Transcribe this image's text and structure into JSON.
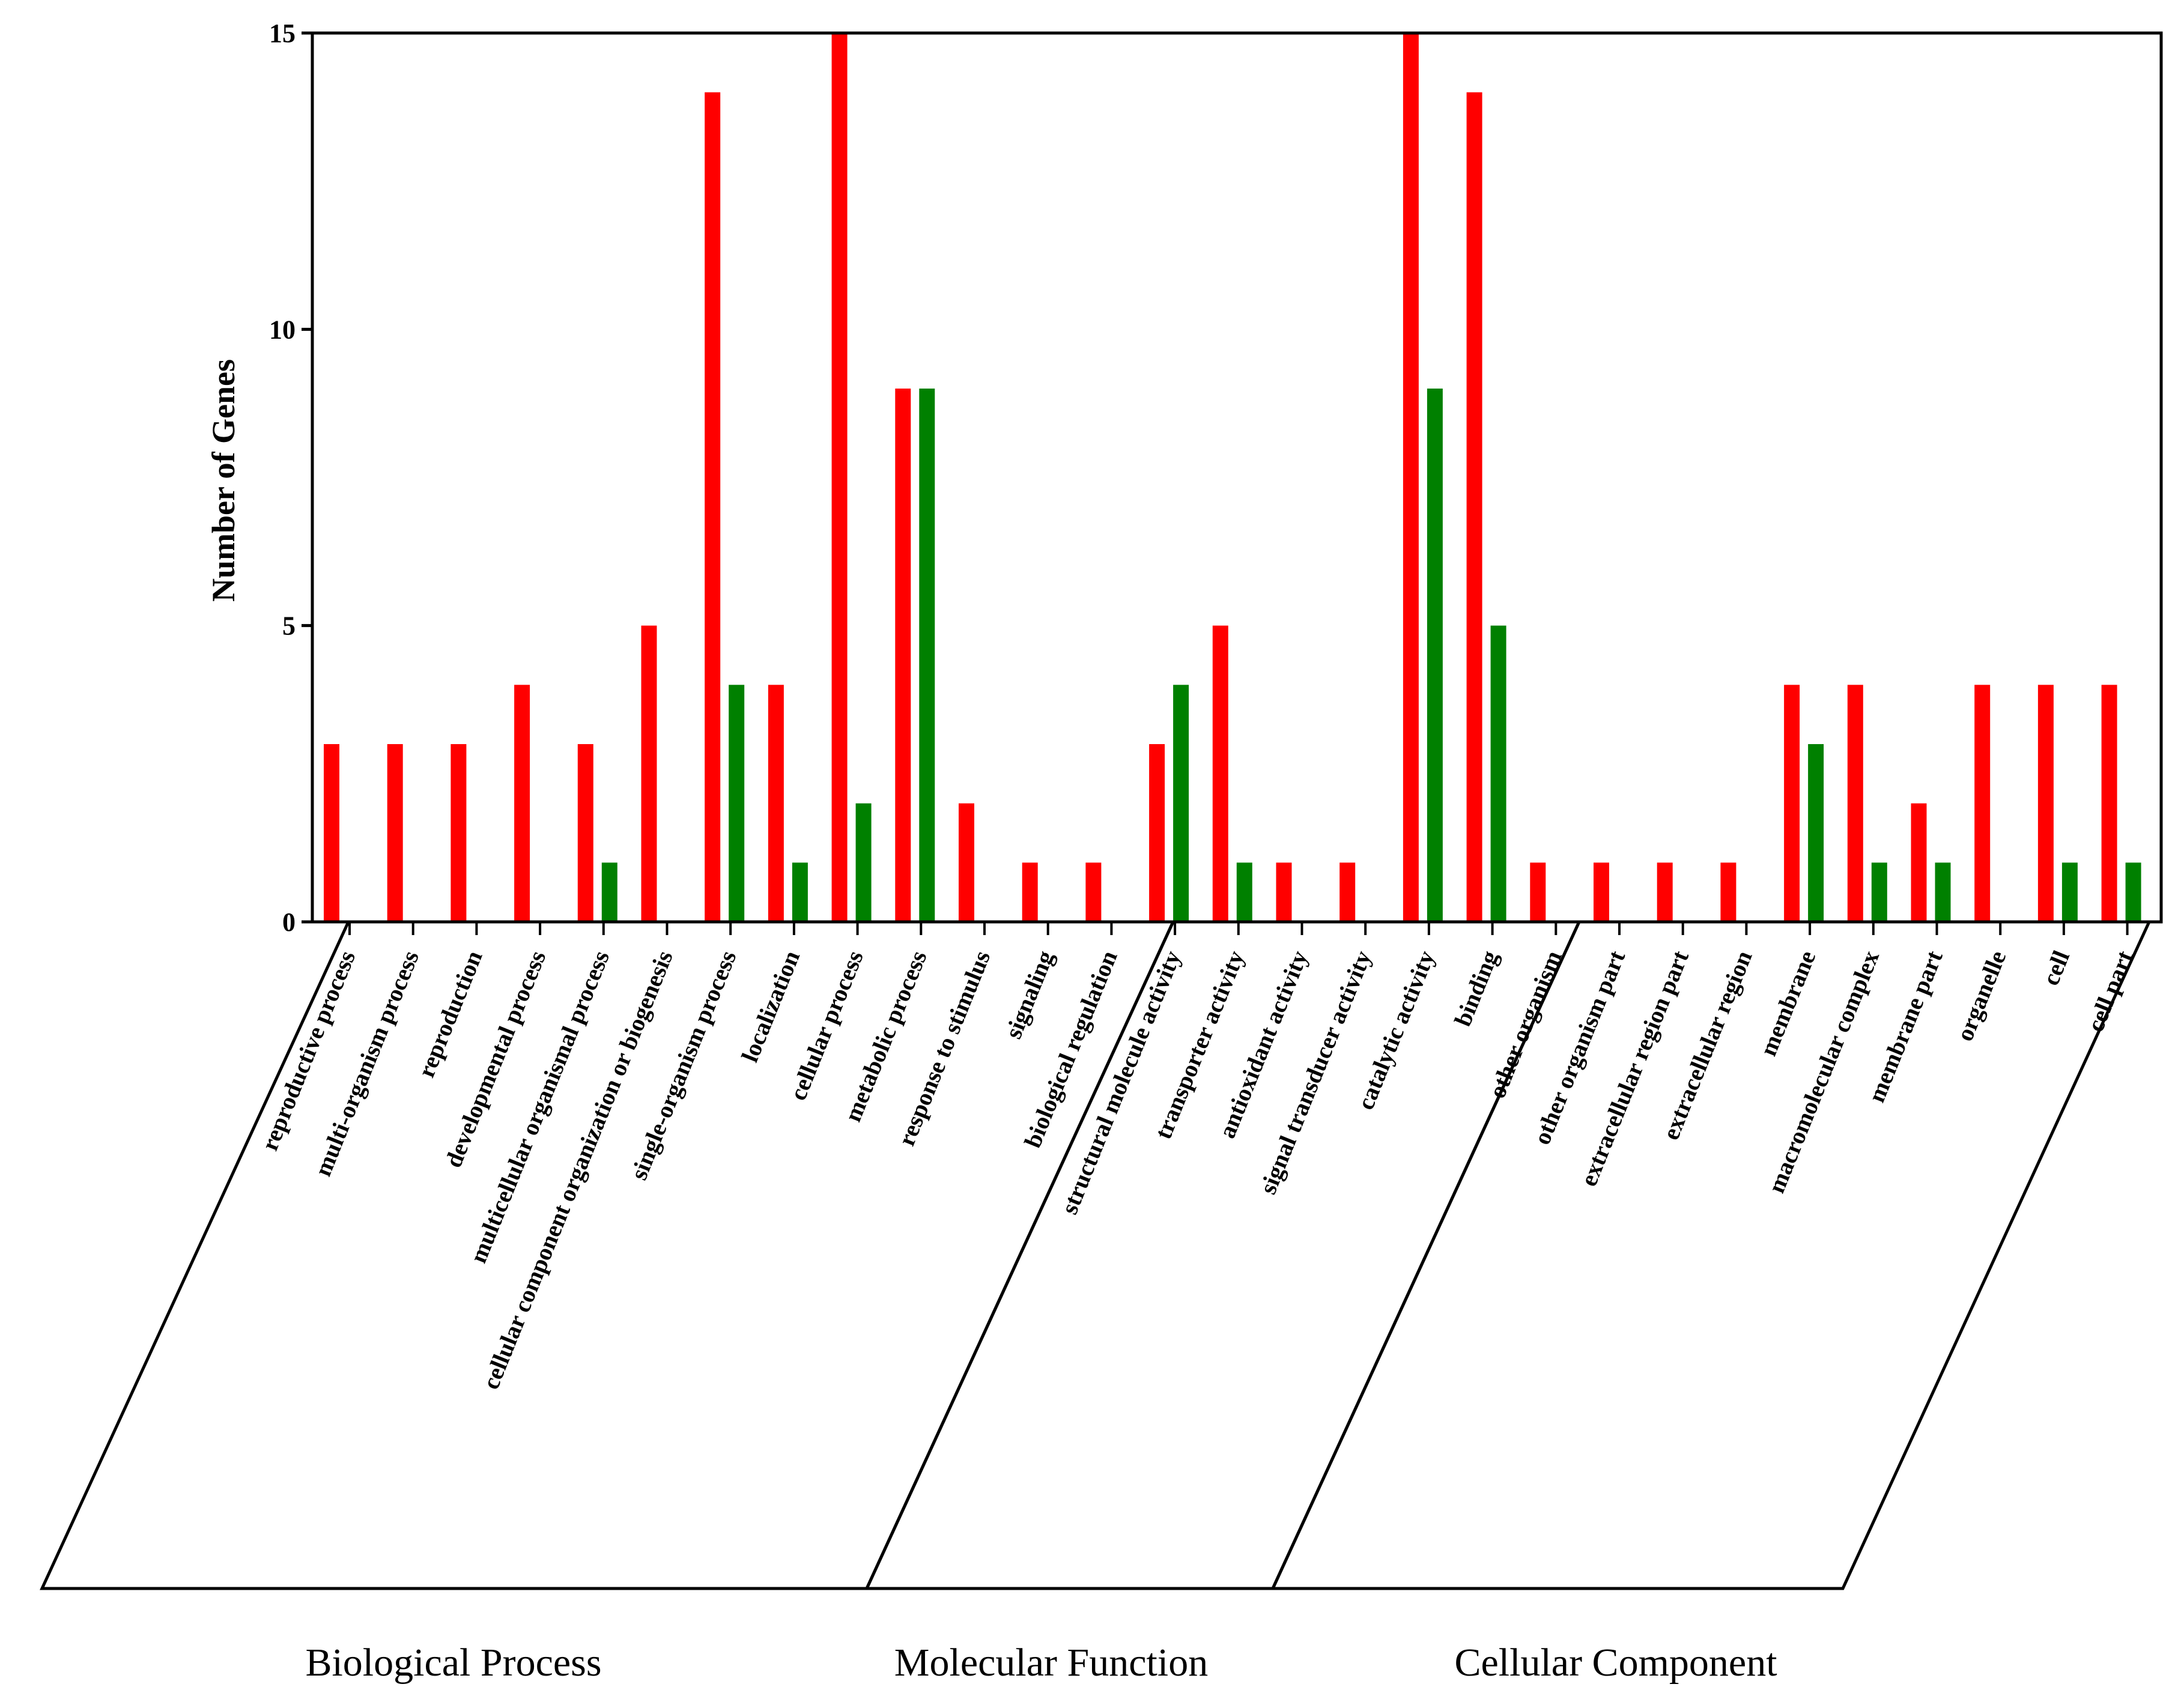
{
  "chart_data": {
    "type": "bar",
    "title": "",
    "xlabel": "",
    "ylabel": "Number of Genes",
    "ylim": [
      0,
      15
    ],
    "yticks": [
      0,
      5,
      10,
      15
    ],
    "grid": false,
    "series": [
      {
        "name": "series-red",
        "color": "#ff0000",
        "values": [
          3,
          3,
          3,
          4,
          3,
          5,
          14,
          4,
          15,
          9,
          2,
          1,
          1,
          3,
          5,
          1,
          1,
          15,
          14,
          1,
          1,
          1,
          1,
          4,
          4,
          2,
          4,
          4,
          4
        ]
      },
      {
        "name": "series-green",
        "color": "#008000",
        "values": [
          0,
          0,
          0,
          0,
          1,
          0,
          4,
          1,
          2,
          9,
          0,
          0,
          0,
          4,
          1,
          0,
          0,
          9,
          5,
          0,
          0,
          0,
          0,
          3,
          1,
          1,
          0,
          1,
          1
        ]
      }
    ],
    "categories": [
      "reproductive process",
      "multi-organism process",
      "reproduction",
      "developmental process",
      "multicellular organismal process",
      "cellular component organization or biogenesis",
      "single-organism process",
      "localization",
      "cellular process",
      "metabolic process",
      "response to stimulus",
      "signaling",
      "biological regulation",
      "structural molecule activity",
      "transporter activity",
      "antioxidant activity",
      "signal transducer activity",
      "catalytic activity",
      "binding",
      "other organism",
      "other organism part",
      "extracellular region part",
      "extracellular region",
      "membrane",
      "macromolecular complex",
      "membrane part",
      "organelle",
      "cell",
      "cell part"
    ],
    "groups": [
      {
        "label": "Biological Process",
        "start": 0,
        "end": 12
      },
      {
        "label": "Molecular Function",
        "start": 13,
        "end": 18
      },
      {
        "label": "Cellular Component",
        "start": 19,
        "end": 28
      }
    ]
  }
}
